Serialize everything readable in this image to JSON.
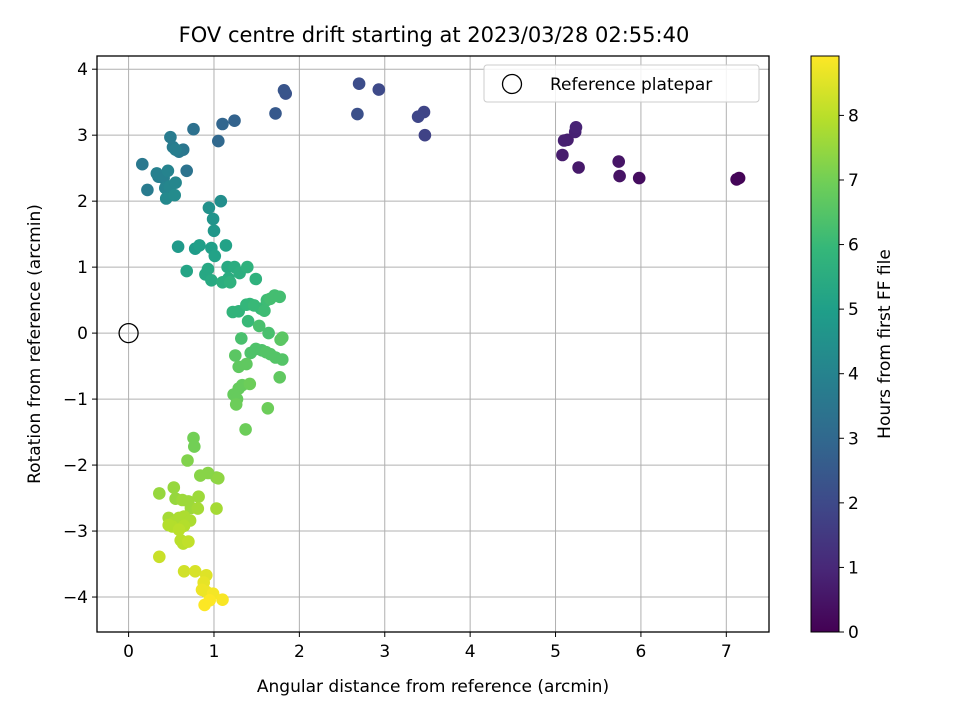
{
  "chart_data": {
    "type": "scatter",
    "title": "FOV centre drift starting at 2023/03/28 02:55:40",
    "xlabel": "Angular distance from reference (arcmin)",
    "ylabel": "Rotation from reference (arcmin)",
    "xlim": [
      -0.37,
      7.5
    ],
    "ylim": [
      -4.53,
      4.2
    ],
    "xticks": [
      0,
      1,
      2,
      3,
      4,
      5,
      6,
      7
    ],
    "xtick_labels": [
      "0",
      "1",
      "2",
      "3",
      "4",
      "5",
      "6",
      "7"
    ],
    "yticks": [
      -4,
      -3,
      -2,
      -1,
      0,
      1,
      2,
      3,
      4
    ],
    "ytick_labels": [
      "−4",
      "−3",
      "−2",
      "−1",
      "0",
      "1",
      "2",
      "3",
      "4"
    ],
    "grid": true,
    "legend": {
      "placement": "top-right",
      "entries": [
        "Reference platepar"
      ]
    },
    "reference_point": {
      "label": "Reference platepar",
      "x": 0,
      "y": 0
    },
    "colorbar": {
      "label": "Hours from first FF file",
      "colormap": "viridis",
      "range": [
        0,
        8.92
      ],
      "ticks": [
        0,
        1,
        2,
        3,
        4,
        5,
        6,
        7,
        8
      ],
      "tick_labels": [
        "0",
        "1",
        "2",
        "3",
        "4",
        "5",
        "6",
        "7",
        "8"
      ]
    },
    "colormap_stops": [
      "#440154",
      "#482878",
      "#3e4989",
      "#31688e",
      "#26828e",
      "#1f9e89",
      "#35b779",
      "#6ece58",
      "#b5de2b",
      "#fde725"
    ],
    "points": [
      [
        7.15,
        2.35,
        0.05
      ],
      [
        7.12,
        2.33,
        0.1
      ],
      [
        5.98,
        2.35,
        0.3
      ],
      [
        5.75,
        2.38,
        0.45
      ],
      [
        5.74,
        2.6,
        0.5
      ],
      [
        5.27,
        2.51,
        0.6
      ],
      [
        5.08,
        2.7,
        0.7
      ],
      [
        5.14,
        2.93,
        0.75
      ],
      [
        5.1,
        2.92,
        0.8
      ],
      [
        5.23,
        3.05,
        0.85
      ],
      [
        5.24,
        3.12,
        0.9
      ],
      [
        3.47,
        3.0,
        1.8
      ],
      [
        3.46,
        3.35,
        1.85
      ],
      [
        3.39,
        3.28,
        1.9
      ],
      [
        2.93,
        3.69,
        2.0
      ],
      [
        2.7,
        3.78,
        2.1
      ],
      [
        2.68,
        3.32,
        2.2
      ],
      [
        1.84,
        3.63,
        2.3
      ],
      [
        1.82,
        3.68,
        2.35
      ],
      [
        1.72,
        3.33,
        2.5
      ],
      [
        1.24,
        3.22,
        2.8
      ],
      [
        1.1,
        3.17,
        2.9
      ],
      [
        1.05,
        2.91,
        3.0
      ],
      [
        0.76,
        3.09,
        3.3
      ],
      [
        0.68,
        2.46,
        3.4
      ],
      [
        0.64,
        2.78,
        3.5
      ],
      [
        0.59,
        2.75,
        3.6
      ],
      [
        0.49,
        2.97,
        3.7
      ],
      [
        0.52,
        2.82,
        3.7
      ],
      [
        0.55,
        2.78,
        3.8
      ],
      [
        0.16,
        2.56,
        3.6
      ],
      [
        0.22,
        2.17,
        3.7
      ],
      [
        0.35,
        2.37,
        3.8
      ],
      [
        0.33,
        2.42,
        3.9
      ],
      [
        0.41,
        2.35,
        3.9
      ],
      [
        0.46,
        2.46,
        4.0
      ],
      [
        0.43,
        2.2,
        4.0
      ],
      [
        0.48,
        2.22,
        4.1
      ],
      [
        0.55,
        2.28,
        4.1
      ],
      [
        0.44,
        2.04,
        4.2
      ],
      [
        0.54,
        2.09,
        4.3
      ],
      [
        1.08,
        2.0,
        4.4
      ],
      [
        0.94,
        1.9,
        4.5
      ],
      [
        0.99,
        1.73,
        4.6
      ],
      [
        1.0,
        1.55,
        4.7
      ],
      [
        0.58,
        1.31,
        4.8
      ],
      [
        0.78,
        1.28,
        4.9
      ],
      [
        0.83,
        1.33,
        5.0
      ],
      [
        0.97,
        1.29,
        5.0
      ],
      [
        1.14,
        1.33,
        5.1
      ],
      [
        1.01,
        1.17,
        5.1
      ],
      [
        0.68,
        0.94,
        5.2
      ],
      [
        0.9,
        0.89,
        5.3
      ],
      [
        0.93,
        0.97,
        5.3
      ],
      [
        0.97,
        0.8,
        5.4
      ],
      [
        1.16,
        1.0,
        5.4
      ],
      [
        1.24,
        1.0,
        5.5
      ],
      [
        1.17,
        0.83,
        5.5
      ],
      [
        1.1,
        0.77,
        5.6
      ],
      [
        1.3,
        0.91,
        5.6
      ],
      [
        1.39,
        1.0,
        5.7
      ],
      [
        1.49,
        0.82,
        5.7
      ],
      [
        1.19,
        0.77,
        5.7
      ],
      [
        1.22,
        0.32,
        5.8
      ],
      [
        1.29,
        0.33,
        5.8
      ],
      [
        1.38,
        0.43,
        5.9
      ],
      [
        1.42,
        0.44,
        5.9
      ],
      [
        1.47,
        0.42,
        6.0
      ],
      [
        1.55,
        0.37,
        6.0
      ],
      [
        1.4,
        0.18,
        6.0
      ],
      [
        1.59,
        0.34,
        6.1
      ],
      [
        1.62,
        0.5,
        6.1
      ],
      [
        1.66,
        0.52,
        6.2
      ],
      [
        1.71,
        0.57,
        6.2
      ],
      [
        1.77,
        0.55,
        6.2
      ],
      [
        1.53,
        0.11,
        6.3
      ],
      [
        1.64,
        0.0,
        6.3
      ],
      [
        1.32,
        -0.08,
        6.3
      ],
      [
        1.43,
        -0.3,
        6.4
      ],
      [
        1.49,
        -0.24,
        6.4
      ],
      [
        1.56,
        -0.26,
        6.4
      ],
      [
        1.61,
        -0.29,
        6.5
      ],
      [
        1.66,
        -0.32,
        6.5
      ],
      [
        1.72,
        -0.37,
        6.5
      ],
      [
        1.8,
        -0.4,
        6.5
      ],
      [
        1.78,
        -0.1,
        6.6
      ],
      [
        1.8,
        -0.07,
        6.6
      ],
      [
        1.25,
        -0.34,
        6.6
      ],
      [
        1.29,
        -0.51,
        6.7
      ],
      [
        1.38,
        -0.47,
        6.7
      ],
      [
        1.77,
        -0.67,
        6.7
      ],
      [
        1.33,
        -0.79,
        6.8
      ],
      [
        1.29,
        -0.84,
        6.8
      ],
      [
        1.23,
        -0.93,
        6.8
      ],
      [
        1.27,
        -1.0,
        6.8
      ],
      [
        1.26,
        -1.08,
        6.9
      ],
      [
        1.63,
        -1.14,
        6.9
      ],
      [
        1.37,
        -1.46,
        6.9
      ],
      [
        1.42,
        -0.77,
        6.9
      ],
      [
        0.76,
        -1.59,
        7.0
      ],
      [
        0.77,
        -1.72,
        7.0
      ],
      [
        0.69,
        -1.93,
        7.2
      ],
      [
        0.84,
        -2.16,
        7.3
      ],
      [
        0.93,
        -2.12,
        7.3
      ],
      [
        1.03,
        -2.19,
        7.3
      ],
      [
        1.05,
        -2.2,
        7.4
      ],
      [
        0.36,
        -2.43,
        7.5
      ],
      [
        0.53,
        -2.34,
        7.5
      ],
      [
        0.55,
        -2.51,
        7.5
      ],
      [
        0.63,
        -2.53,
        7.6
      ],
      [
        0.7,
        -2.55,
        7.6
      ],
      [
        0.73,
        -2.65,
        7.6
      ],
      [
        0.82,
        -2.48,
        7.6
      ],
      [
        0.81,
        -2.66,
        7.7
      ],
      [
        1.03,
        -2.66,
        7.7
      ],
      [
        0.47,
        -2.8,
        7.7
      ],
      [
        0.53,
        -2.87,
        7.8
      ],
      [
        0.59,
        -2.8,
        7.8
      ],
      [
        0.65,
        -2.78,
        7.8
      ],
      [
        0.72,
        -2.84,
        7.8
      ],
      [
        0.65,
        -2.92,
        7.9
      ],
      [
        0.51,
        -2.93,
        7.9
      ],
      [
        0.47,
        -2.91,
        7.9
      ],
      [
        0.59,
        -2.98,
        8.0
      ],
      [
        0.61,
        -3.14,
        8.0
      ],
      [
        0.64,
        -3.19,
        8.0
      ],
      [
        0.7,
        -3.16,
        8.1
      ],
      [
        0.36,
        -3.39,
        8.2
      ],
      [
        0.65,
        -3.61,
        8.3
      ],
      [
        0.78,
        -3.61,
        8.4
      ],
      [
        0.91,
        -3.67,
        8.5
      ],
      [
        0.88,
        -3.78,
        8.6
      ],
      [
        0.86,
        -3.89,
        8.7
      ],
      [
        0.91,
        -3.92,
        8.7
      ],
      [
        0.99,
        -3.95,
        8.8
      ],
      [
        1.1,
        -4.04,
        8.85
      ],
      [
        0.89,
        -4.12,
        8.9
      ],
      [
        0.95,
        -4.05,
        8.9
      ]
    ]
  }
}
